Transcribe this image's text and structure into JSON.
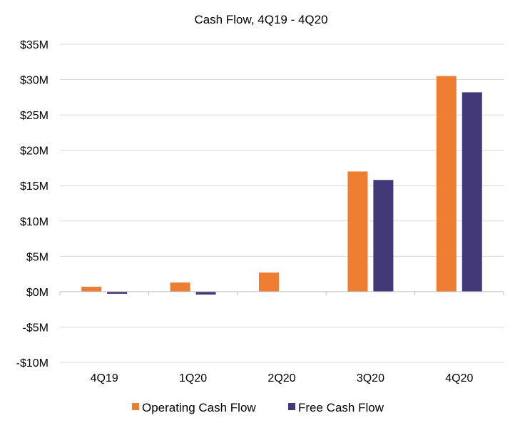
{
  "chart_data": {
    "type": "bar",
    "title": "Cash Flow, 4Q19 - 4Q20",
    "categories": [
      "4Q19",
      "1Q20",
      "2Q20",
      "3Q20",
      "4Q20"
    ],
    "series": [
      {
        "name": "Operating Cash Flow",
        "color": "#ed7d31",
        "values": [
          0.7,
          1.3,
          2.7,
          17.0,
          30.5
        ]
      },
      {
        "name": "Free Cash Flow",
        "color": "#433878",
        "values": [
          -0.3,
          -0.4,
          0.0,
          15.8,
          28.2
        ]
      }
    ],
    "ylim": [
      -10,
      35
    ],
    "yticks": [
      35,
      30,
      25,
      20,
      15,
      10,
      5,
      0,
      -5,
      -10
    ],
    "ytick_labels": [
      "$35M",
      "$30M",
      "$25M",
      "$20M",
      "$15M",
      "$10M",
      "$5M",
      "$0M",
      "-$5M",
      "-$10M"
    ],
    "xlabel": "",
    "ylabel": "",
    "grid": true,
    "legend_position": "bottom"
  }
}
